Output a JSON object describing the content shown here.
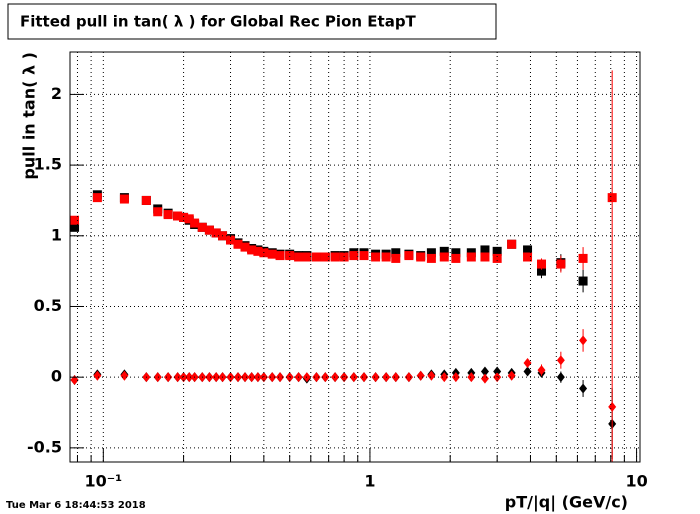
{
  "chart_data": {
    "type": "scatter",
    "title": "Fitted pull in tan( λ )  for Global Rec Pion EtapT",
    "x_label": "pT/|q| (GeV/c)",
    "y_label": "pull in tan( λ )",
    "timestamp": "Tue Mar  6 18:44:53 2018",
    "xlog": true,
    "grid": true,
    "xlim": [
      0.075,
      10.3
    ],
    "ylim": [
      -0.6,
      2.3
    ],
    "xticks": [
      {
        "value": 0.1,
        "label": "10⁻¹"
      },
      1,
      10
    ],
    "xminorticks": [
      0.08,
      0.09,
      0.2,
      0.3,
      0.4,
      0.5,
      0.6,
      0.7,
      0.8,
      0.9,
      2,
      3,
      4,
      5,
      6,
      7,
      8,
      9
    ],
    "yticks": [
      -0.5,
      0,
      0.5,
      1,
      1.5,
      2
    ],
    "x": [
      0.078,
      0.095,
      0.12,
      0.145,
      0.16,
      0.175,
      0.19,
      0.2,
      0.21,
      0.22,
      0.235,
      0.25,
      0.265,
      0.28,
      0.3,
      0.32,
      0.34,
      0.36,
      0.38,
      0.4,
      0.43,
      0.46,
      0.5,
      0.54,
      0.58,
      0.63,
      0.68,
      0.74,
      0.8,
      0.87,
      0.95,
      1.05,
      1.15,
      1.25,
      1.4,
      1.55,
      1.7,
      1.9,
      2.1,
      2.4,
      2.7,
      3.0,
      3.4,
      3.9,
      4.4,
      5.2,
      6.3,
      8.1
    ],
    "series": [
      {
        "color": "#000000",
        "marker": "square",
        "values": [
          1.06,
          1.29,
          1.27,
          1.25,
          1.19,
          1.16,
          1.14,
          1.13,
          1.11,
          1.08,
          1.06,
          1.04,
          1.02,
          1.0,
          0.98,
          0.95,
          0.93,
          0.91,
          0.9,
          0.89,
          0.88,
          0.87,
          0.87,
          0.86,
          0.86,
          0.85,
          0.85,
          0.86,
          0.86,
          0.88,
          0.88,
          0.87,
          0.87,
          0.88,
          0.87,
          0.86,
          0.88,
          0.89,
          0.88,
          0.88,
          0.9,
          0.89,
          0.94,
          0.9,
          0.75,
          0.81,
          0.68,
          null
        ],
        "errors": [
          0.01,
          0.01,
          0.01,
          0.01,
          0.01,
          0.01,
          0.01,
          0.01,
          0.01,
          0.01,
          0.01,
          0.01,
          0.01,
          0.01,
          0.01,
          0.01,
          0.01,
          0.01,
          0.01,
          0.01,
          0.01,
          0.01,
          0.01,
          0.01,
          0.01,
          0.01,
          0.01,
          0.01,
          0.01,
          0.01,
          0.01,
          0.01,
          0.01,
          0.01,
          0.01,
          0.01,
          0.01,
          0.01,
          0.01,
          0.01,
          0.01,
          0.02,
          0.02,
          0.03,
          0.05,
          0.06,
          0.08,
          null
        ]
      },
      {
        "color": "#ff0000",
        "marker": "square",
        "values": [
          1.11,
          1.27,
          1.26,
          1.25,
          1.17,
          1.15,
          1.14,
          1.13,
          1.12,
          1.09,
          1.06,
          1.04,
          1.02,
          1.0,
          0.97,
          0.94,
          0.92,
          0.9,
          0.89,
          0.88,
          0.87,
          0.86,
          0.86,
          0.85,
          0.85,
          0.85,
          0.85,
          0.85,
          0.85,
          0.86,
          0.86,
          0.85,
          0.85,
          0.84,
          0.86,
          0.85,
          0.84,
          0.85,
          0.84,
          0.85,
          0.85,
          0.84,
          0.94,
          0.85,
          0.8,
          0.8,
          0.84,
          1.27
        ],
        "errors": [
          0.01,
          0.01,
          0.01,
          0.01,
          0.01,
          0.01,
          0.01,
          0.01,
          0.01,
          0.01,
          0.01,
          0.01,
          0.01,
          0.01,
          0.01,
          0.01,
          0.01,
          0.01,
          0.01,
          0.01,
          0.01,
          0.01,
          0.01,
          0.01,
          0.01,
          0.01,
          0.01,
          0.01,
          0.01,
          0.01,
          0.01,
          0.01,
          0.01,
          0.01,
          0.01,
          0.01,
          0.01,
          0.01,
          0.01,
          0.01,
          0.01,
          0.02,
          0.02,
          0.03,
          0.04,
          0.06,
          0.08,
          0.9
        ]
      },
      {
        "color": "#000000",
        "marker": "diamond",
        "values": [
          -0.02,
          0.02,
          0.02,
          0,
          0,
          0,
          0,
          0,
          0,
          0,
          0,
          0,
          0,
          0,
          0,
          0,
          0,
          0,
          0,
          0,
          0,
          0,
          0,
          0,
          -0.01,
          0,
          0,
          0,
          0,
          0,
          0,
          0,
          0,
          0,
          0,
          0.01,
          0.02,
          0.02,
          0.03,
          0.03,
          0.04,
          0.04,
          0.03,
          0.04,
          0.03,
          0,
          -0.08,
          -0.33
        ],
        "errors": [
          0.01,
          0.01,
          0.01,
          0.01,
          0.01,
          0.01,
          0.01,
          0.01,
          0.01,
          0.01,
          0.01,
          0.01,
          0.01,
          0.01,
          0.01,
          0.01,
          0.01,
          0.01,
          0.01,
          0.01,
          0.01,
          0.01,
          0.01,
          0.01,
          0.01,
          0.01,
          0.01,
          0.01,
          0.01,
          0.01,
          0.01,
          0.01,
          0.01,
          0.01,
          0.01,
          0.01,
          0.01,
          0.01,
          0.01,
          0.01,
          0.01,
          0.01,
          0.02,
          0.02,
          0.03,
          0.04,
          0.06,
          0.25
        ]
      },
      {
        "color": "#ff0000",
        "marker": "diamond",
        "values": [
          -0.02,
          0.01,
          0.01,
          0,
          0,
          0,
          0,
          0,
          0,
          0,
          0,
          0,
          0,
          0,
          0,
          0,
          0,
          0,
          0,
          0,
          0,
          0,
          0,
          0,
          0,
          0,
          0,
          0,
          0,
          0,
          0,
          0,
          0,
          0,
          0,
          0.01,
          0.01,
          0,
          0,
          0,
          -0.01,
          0,
          0.01,
          0.1,
          0.05,
          0.12,
          0.26,
          -0.21
        ],
        "errors": [
          0.01,
          0.01,
          0.01,
          0.01,
          0.01,
          0.01,
          0.01,
          0.01,
          0.01,
          0.01,
          0.01,
          0.01,
          0.01,
          0.01,
          0.01,
          0.01,
          0.01,
          0.01,
          0.01,
          0.01,
          0.01,
          0.01,
          0.01,
          0.01,
          0.01,
          0.01,
          0.01,
          0.01,
          0.01,
          0.01,
          0.01,
          0.01,
          0.01,
          0.01,
          0.01,
          0.01,
          0.01,
          0.01,
          0.01,
          0.01,
          0.01,
          0.01,
          0.02,
          0.03,
          0.04,
          0.06,
          0.08,
          0.6
        ]
      }
    ]
  }
}
